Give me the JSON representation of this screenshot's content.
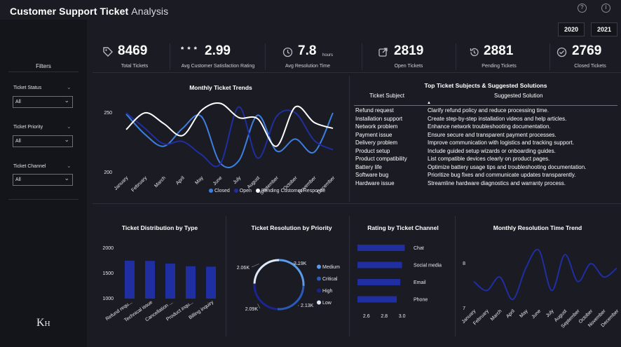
{
  "header": {
    "title_bold": "Customer Support Ticket",
    "title_light": "Analysis",
    "help_icon_glyph": "?",
    "info_icon_glyph": "i"
  },
  "years": [
    "2020",
    "2021"
  ],
  "filters": {
    "heading": "Filters",
    "items": [
      {
        "label": "Ticket Status",
        "value": "All"
      },
      {
        "label": "Ticket Priority",
        "value": "All"
      },
      {
        "label": "Ticket Channel",
        "value": "All"
      }
    ]
  },
  "kpis": [
    {
      "value": "8469",
      "label": "Total Tickets",
      "icon": "tag-icon"
    },
    {
      "value": "2.99",
      "prefix": "* * *",
      "label": "Avg Customer Satisfaction Rating",
      "icon": "stars-icon"
    },
    {
      "value": "7.8",
      "suffix": "hours",
      "label": "Avg Resolution Time",
      "icon": "clock-icon"
    },
    {
      "value": "2819",
      "label": "Open Tickets",
      "icon": "open-external-icon"
    },
    {
      "value": "2881",
      "label": "Pending Tickets",
      "icon": "history-icon"
    },
    {
      "value": "2769",
      "label": "Closed Tickets",
      "icon": "check-circle-icon"
    }
  ],
  "colors": {
    "closed": "#3d7fe0",
    "open": "#1f2ea0",
    "pending": "#ffffff",
    "bar": "#1f2ea0",
    "line": "#1f2ea0",
    "bg": "#1b1b24",
    "panel": "#14141b"
  },
  "table": {
    "title": "Top Ticket Subjects & Suggested Solutions",
    "col1": "Ticket Subject",
    "col2": "Suggested Solution",
    "rows": [
      [
        "Refund request",
        "Clarify refund policy and reduce processing time."
      ],
      [
        "Installation support",
        "Create step-by-step installation videos and help articles."
      ],
      [
        "Network problem",
        "Enhance network troubleshooting documentation."
      ],
      [
        "Payment issue",
        "Ensure secure and transparent payment processes."
      ],
      [
        "Delivery problem",
        "Improve communication with logistics and tracking support."
      ],
      [
        "Product setup",
        "Include guided setup wizards or onboarding guides."
      ],
      [
        "Product compatibility",
        "List compatible devices clearly on product pages."
      ],
      [
        "Battery life",
        "Optimize battery usage tips and troubleshooting documentation."
      ],
      [
        "Software bug",
        "Prioritize bug fixes and communicate updates transparently."
      ],
      [
        "Hardware issue",
        "Streamline hardware diagnostics and warranty process."
      ]
    ]
  },
  "chart_data": [
    {
      "type": "line",
      "title": "Monthly Ticket Trends",
      "categories": [
        "January",
        "February",
        "March",
        "April",
        "May",
        "June",
        "July",
        "August",
        "September",
        "October",
        "November",
        "December"
      ],
      "ylim": [
        200,
        260
      ],
      "yticks": [
        200,
        250
      ],
      "legend_position": "bottom-right",
      "series": [
        {
          "name": "Closed",
          "values": [
            249,
            232,
            222,
            237,
            247,
            208,
            210,
            248,
            218,
            228,
            217,
            250
          ]
        },
        {
          "name": "Open",
          "values": [
            250,
            237,
            224,
            226,
            215,
            207,
            255,
            212,
            247,
            250,
            227,
            219
          ]
        },
        {
          "name": "Pending Customer Response",
          "values": [
            236,
            250,
            241,
            231,
            252,
            258,
            246,
            245,
            222,
            255,
            242,
            237
          ]
        }
      ]
    },
    {
      "type": "bar",
      "title": "Ticket Distribution by Type",
      "categories": [
        "Refund requ...",
        "Technical issue",
        "Cancellation ...",
        "Product inqu...",
        "Billing inquiry"
      ],
      "values": [
        1752,
        1747,
        1695,
        1641,
        1634
      ],
      "ylim": [
        1000,
        2000
      ],
      "yticks": [
        1000,
        1500,
        2000
      ]
    },
    {
      "type": "pie",
      "title": "Ticket Resolution by Priority",
      "categories": [
        "Medium",
        "Critical",
        "High",
        "Low"
      ],
      "values": [
        2.19,
        2.13,
        2.09,
        2.06
      ],
      "data_labels": [
        "2.19K",
        "2.13K",
        "2.09K",
        "2.06K"
      ],
      "colors": [
        "#5b9bea",
        "#2a5ab8",
        "#1a2590",
        "#dfe9f7"
      ],
      "legend_position": "right"
    },
    {
      "type": "bar",
      "orientation": "horizontal",
      "title": "Rating by Ticket Channel",
      "categories": [
        "Chat",
        "Social media",
        "Email",
        "Phone"
      ],
      "values": [
        3.03,
        3.0,
        2.98,
        2.94
      ],
      "xlim": [
        2.5,
        3.05
      ],
      "xticks": [
        2.6,
        2.8,
        3.0
      ],
      "xtick_labels": [
        "2.6",
        "2.8",
        "3.0"
      ]
    },
    {
      "type": "line",
      "title": "Monthly Resolution Time Trend",
      "categories": [
        "January",
        "February",
        "March",
        "April",
        "May",
        "June",
        "July",
        "August",
        "September",
        "October",
        "November",
        "December"
      ],
      "values": [
        7.6,
        7.4,
        7.7,
        7.2,
        7.9,
        8.3,
        7.4,
        8.2,
        7.6,
        8.0,
        7.7,
        7.9
      ],
      "ylim": [
        7,
        8.5
      ],
      "yticks": [
        7,
        8
      ]
    }
  ]
}
